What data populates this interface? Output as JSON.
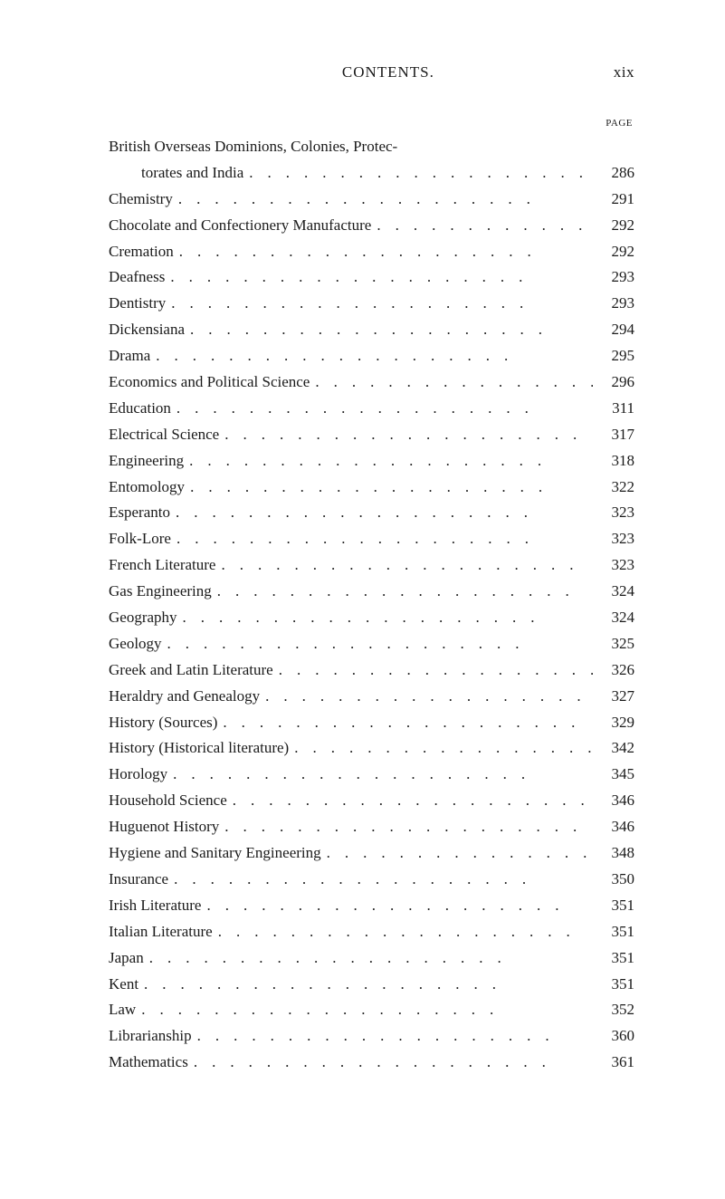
{
  "header": {
    "title": "CONTENTS.",
    "page_roman": "xix",
    "page_label": "PAGE"
  },
  "entries": [
    {
      "label_line1": "British Overseas Dominions, Colonies, Protec-",
      "label_line2": "torates and India",
      "page": "286",
      "multiline": true
    },
    {
      "label": "Chemistry",
      "page": "291"
    },
    {
      "label": "Chocolate and Confectionery Manufacture",
      "page": "292"
    },
    {
      "label": "Cremation",
      "page": "292"
    },
    {
      "label": "Deafness",
      "page": "293"
    },
    {
      "label": "Dentistry",
      "page": "293"
    },
    {
      "label": "Dickensiana",
      "page": "294"
    },
    {
      "label": "Drama",
      "page": "295"
    },
    {
      "label": "Economics and Political Science",
      "page": "296"
    },
    {
      "label": "Education",
      "page": "311"
    },
    {
      "label": "Electrical Science",
      "page": "317"
    },
    {
      "label": "Engineering",
      "page": "318"
    },
    {
      "label": "Entomology",
      "page": "322"
    },
    {
      "label": "Esperanto",
      "page": "323"
    },
    {
      "label": "Folk-Lore",
      "page": "323"
    },
    {
      "label": "French Literature",
      "page": "323"
    },
    {
      "label": "Gas Engineering",
      "page": "324"
    },
    {
      "label": "Geography",
      "page": "324"
    },
    {
      "label": "Geology",
      "page": "325"
    },
    {
      "label": "Greek and Latin Literature",
      "page": "326"
    },
    {
      "label": "Heraldry and Genealogy",
      "page": "327"
    },
    {
      "label": "History (Sources)",
      "page": "329"
    },
    {
      "label": "History (Historical literature)",
      "page": "342"
    },
    {
      "label": "Horology",
      "page": "345"
    },
    {
      "label": "Household Science",
      "page": "346"
    },
    {
      "label": "Huguenot History",
      "page": "346"
    },
    {
      "label": "Hygiene and Sanitary Engineering",
      "page": "348"
    },
    {
      "label": "Insurance",
      "page": "350"
    },
    {
      "label": "Irish Literature",
      "page": "351"
    },
    {
      "label": "Italian Literature",
      "page": "351"
    },
    {
      "label": "Japan",
      "page": "351"
    },
    {
      "label": "Kent",
      "page": "351"
    },
    {
      "label": "Law",
      "page": "352"
    },
    {
      "label": "Librarianship",
      "page": "360"
    },
    {
      "label": "Mathematics",
      "page": "361"
    }
  ],
  "style": {
    "font_color": "#1a1a1a",
    "bg_color": "#ffffff",
    "dot_char": ".",
    "dot_repeat": 20
  }
}
